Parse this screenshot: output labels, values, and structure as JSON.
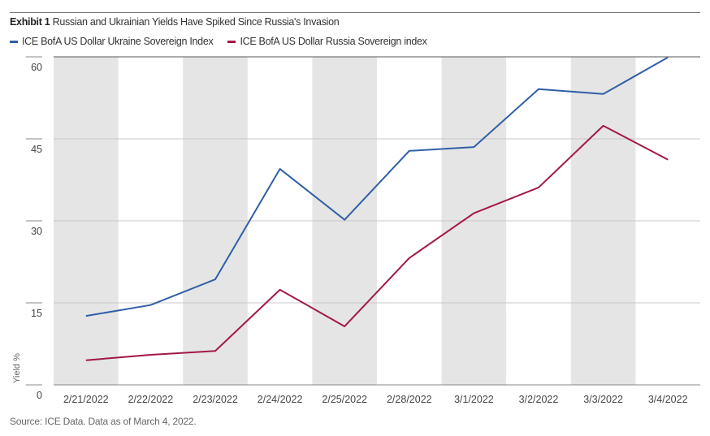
{
  "chart_data": {
    "type": "line",
    "exhibit_label": "Exhibit 1",
    "title": "Russian and Ukrainian Yields Have Spiked Since Russia's Invasion",
    "xlabel": "",
    "ylabel": "Yield %",
    "ylim": [
      0,
      60
    ],
    "yticks": [
      0,
      15,
      30,
      45,
      60
    ],
    "grid": true,
    "legend_position": "top-left",
    "categories": [
      "2/21/2022",
      "2/22/2022",
      "2/23/2022",
      "2/24/2022",
      "2/25/2022",
      "2/28/2022",
      "3/1/2022",
      "3/2/2022",
      "3/3/2022",
      "3/4/2022"
    ],
    "series": [
      {
        "name": "ICE BofA US Dollar Ukraine Sovereign Index",
        "color": "#2f5fa7",
        "values": [
          12.6,
          14.6,
          19.3,
          39.5,
          30.2,
          42.8,
          43.5,
          54.1,
          53.2,
          59.9
        ]
      },
      {
        "name": "ICE BofA US Dollar Russia Sovereign index",
        "color": "#a3174a",
        "values": [
          4.5,
          5.5,
          6.2,
          17.4,
          10.7,
          23.2,
          31.4,
          36.1,
          47.4,
          41.2
        ]
      }
    ],
    "source": "Source: ICE Data.  Data as of March 4, 2022."
  }
}
